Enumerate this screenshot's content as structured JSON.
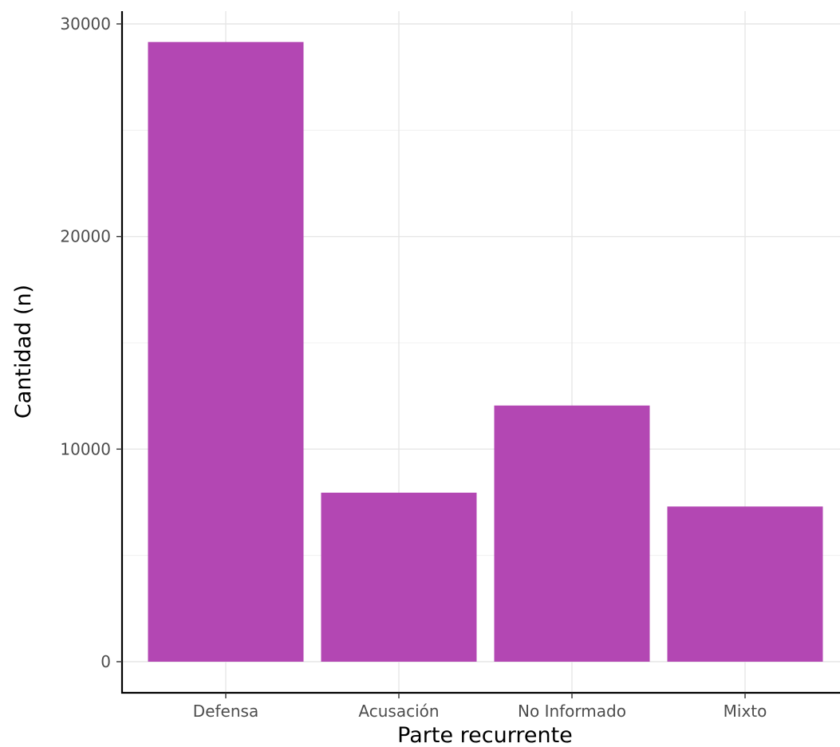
{
  "chart_data": {
    "type": "bar",
    "categories": [
      "Defensa",
      "Acusación",
      "No Informado",
      "Mixto"
    ],
    "values": [
      29150,
      7950,
      12050,
      7300
    ],
    "title": "",
    "xlabel": "Parte recurrente",
    "ylabel": "Cantidad (n)",
    "ylim": [
      0,
      30000
    ],
    "yticks": [
      0,
      10000,
      20000,
      30000
    ],
    "grid": true,
    "legend": "none",
    "bar_color": "#b347b3"
  }
}
